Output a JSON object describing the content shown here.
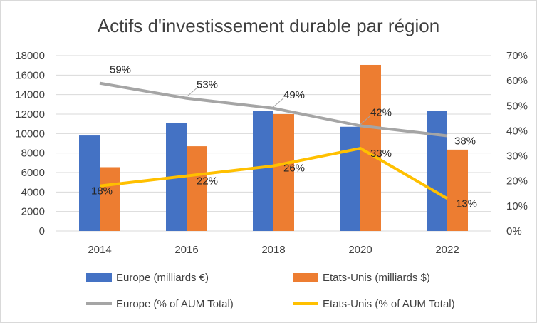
{
  "chart_data": {
    "type": "bar",
    "title": "Actifs d'investissement durable par région",
    "categories": [
      "2014",
      "2016",
      "2018",
      "2020",
      "2022"
    ],
    "y_left": {
      "ylim": [
        0,
        18000
      ],
      "ticks": [
        "0",
        "2000",
        "4000",
        "6000",
        "8000",
        "10000",
        "12000",
        "14000",
        "16000",
        "18000"
      ]
    },
    "y_right": {
      "ylim": [
        0,
        70
      ],
      "ticks": [
        "0%",
        "10%",
        "20%",
        "30%",
        "40%",
        "50%",
        "60%",
        "70%"
      ]
    },
    "series": [
      {
        "name": "Europe (milliards €)",
        "kind": "bar",
        "axis": "left",
        "color": "#4472C4",
        "values": [
          9800,
          11050,
          12300,
          10700,
          12350
        ]
      },
      {
        "name": "Etats-Unis (milliards $)",
        "kind": "bar",
        "axis": "left",
        "color": "#ED7D31",
        "values": [
          6550,
          8700,
          12000,
          17050,
          8350
        ]
      },
      {
        "name": "Europe (% of AUM Total)",
        "kind": "line",
        "axis": "right",
        "color": "#A5A5A5",
        "values": [
          59,
          53,
          49,
          42,
          38
        ],
        "labels": [
          "59%",
          "53%",
          "49%",
          "42%",
          "38%"
        ]
      },
      {
        "name": "Etats-Unis (% of AUM Total)",
        "kind": "line",
        "axis": "right",
        "color": "#FFC000",
        "values": [
          18,
          22,
          26,
          33,
          13
        ],
        "labels": [
          "18%",
          "22%",
          "26%",
          "33%",
          "13%"
        ]
      }
    ],
    "grid": true,
    "legend": "bottom"
  }
}
